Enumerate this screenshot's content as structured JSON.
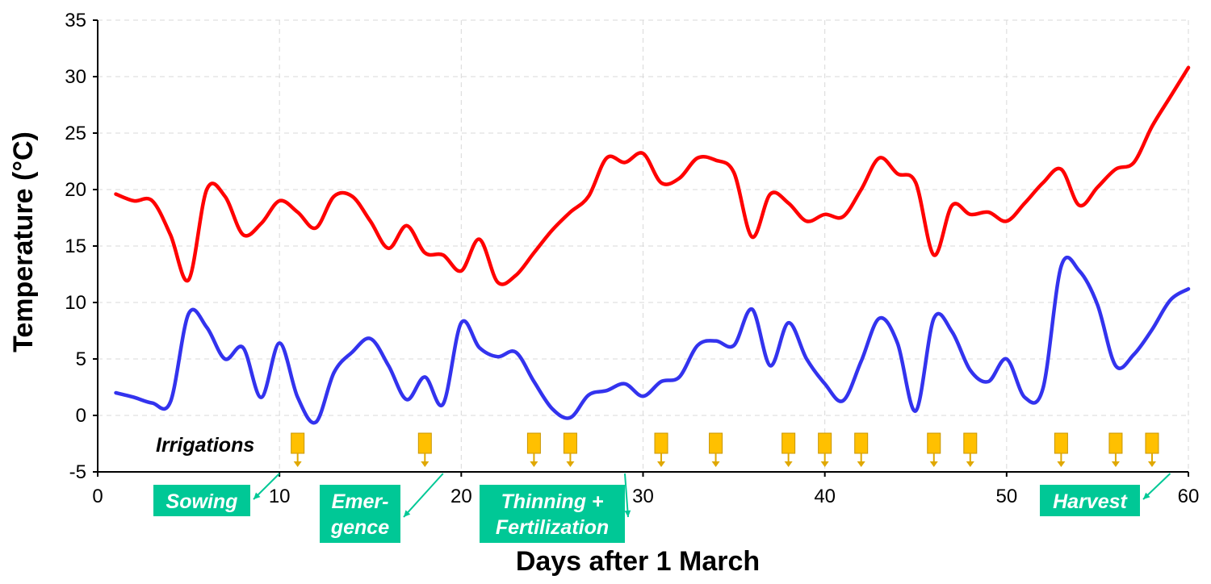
{
  "chart_data": {
    "type": "line",
    "title": "",
    "xlabel": "Days after 1 March",
    "ylabel": "Temperature (°C)",
    "xlim": [
      0,
      60
    ],
    "ylim": [
      -5,
      35
    ],
    "x_ticks": [
      0,
      10,
      20,
      30,
      40,
      50,
      60
    ],
    "y_ticks": [
      -5,
      0,
      5,
      10,
      15,
      20,
      25,
      30,
      35
    ],
    "grid": true,
    "series": [
      {
        "color": "#ff0000",
        "points": [
          [
            1,
            19.6
          ],
          [
            2,
            19.0
          ],
          [
            3,
            19.0
          ],
          [
            4,
            16.0
          ],
          [
            5,
            12.0
          ],
          [
            6,
            20.0
          ],
          [
            7,
            19.4
          ],
          [
            8,
            16.0
          ],
          [
            9,
            17.0
          ],
          [
            10,
            19.0
          ],
          [
            11,
            18.0
          ],
          [
            12,
            16.6
          ],
          [
            13,
            19.4
          ],
          [
            14,
            19.4
          ],
          [
            15,
            17.2
          ],
          [
            16,
            14.8
          ],
          [
            17,
            16.8
          ],
          [
            18,
            14.4
          ],
          [
            19,
            14.2
          ],
          [
            20,
            12.8
          ],
          [
            21,
            15.6
          ],
          [
            22,
            11.8
          ],
          [
            23,
            12.4
          ],
          [
            24,
            14.4
          ],
          [
            25,
            16.4
          ],
          [
            26,
            18.0
          ],
          [
            27,
            19.4
          ],
          [
            28,
            22.8
          ],
          [
            29,
            22.4
          ],
          [
            30,
            23.2
          ],
          [
            31,
            20.6
          ],
          [
            32,
            21.0
          ],
          [
            33,
            22.8
          ],
          [
            34,
            22.6
          ],
          [
            35,
            21.5
          ],
          [
            36,
            15.8
          ],
          [
            37,
            19.6
          ],
          [
            38,
            18.8
          ],
          [
            39,
            17.2
          ],
          [
            40,
            17.8
          ],
          [
            41,
            17.6
          ],
          [
            42,
            20.0
          ],
          [
            43,
            22.8
          ],
          [
            44,
            21.4
          ],
          [
            45,
            20.6
          ],
          [
            46,
            14.2
          ],
          [
            47,
            18.6
          ],
          [
            48,
            17.8
          ],
          [
            49,
            18.0
          ],
          [
            50,
            17.2
          ],
          [
            51,
            18.8
          ],
          [
            52,
            20.6
          ],
          [
            53,
            21.8
          ],
          [
            54,
            18.6
          ],
          [
            55,
            20.2
          ],
          [
            56,
            21.8
          ],
          [
            57,
            22.4
          ],
          [
            58,
            25.6
          ],
          [
            59,
            28.2
          ],
          [
            60,
            30.8
          ]
        ]
      },
      {
        "color": "#3333ee",
        "points": [
          [
            1,
            2.0
          ],
          [
            2,
            1.6
          ],
          [
            3,
            1.1
          ],
          [
            4,
            1.2
          ],
          [
            5,
            9.0
          ],
          [
            6,
            7.8
          ],
          [
            7,
            5.0
          ],
          [
            8,
            6.0
          ],
          [
            9,
            1.6
          ],
          [
            10,
            6.4
          ],
          [
            11,
            1.6
          ],
          [
            12,
            -0.6
          ],
          [
            13,
            3.8
          ],
          [
            14,
            5.6
          ],
          [
            15,
            6.8
          ],
          [
            16,
            4.4
          ],
          [
            17,
            1.4
          ],
          [
            18,
            3.4
          ],
          [
            19,
            1.0
          ],
          [
            20,
            8.2
          ],
          [
            21,
            6.0
          ],
          [
            22,
            5.2
          ],
          [
            23,
            5.6
          ],
          [
            24,
            3.0
          ],
          [
            25,
            0.6
          ],
          [
            26,
            -0.2
          ],
          [
            27,
            1.8
          ],
          [
            28,
            2.2
          ],
          [
            29,
            2.8
          ],
          [
            30,
            1.7
          ],
          [
            31,
            3.0
          ],
          [
            32,
            3.4
          ],
          [
            33,
            6.2
          ],
          [
            34,
            6.6
          ],
          [
            35,
            6.2
          ],
          [
            36,
            9.4
          ],
          [
            37,
            4.4
          ],
          [
            38,
            8.2
          ],
          [
            39,
            5.0
          ],
          [
            40,
            2.8
          ],
          [
            41,
            1.3
          ],
          [
            42,
            4.8
          ],
          [
            43,
            8.6
          ],
          [
            44,
            6.4
          ],
          [
            45,
            0.4
          ],
          [
            46,
            8.6
          ],
          [
            47,
            7.4
          ],
          [
            48,
            4.0
          ],
          [
            49,
            3.0
          ],
          [
            50,
            5.0
          ],
          [
            51,
            1.6
          ],
          [
            52,
            2.4
          ],
          [
            53,
            13.2
          ],
          [
            54,
            12.8
          ],
          [
            55,
            9.8
          ],
          [
            56,
            4.4
          ],
          [
            57,
            5.4
          ],
          [
            58,
            7.6
          ],
          [
            59,
            10.2
          ],
          [
            60,
            11.2
          ]
        ]
      }
    ],
    "irrigations": {
      "label": "Irrigations",
      "days": [
        11,
        18,
        24,
        26,
        31,
        34,
        38,
        40,
        42,
        46,
        48,
        53,
        56,
        58
      ],
      "color": "#ffc000"
    },
    "stages": [
      {
        "id": "sowing",
        "label": "Sowing",
        "lines": [
          "Sowing"
        ],
        "day": 10
      },
      {
        "id": "emergence",
        "label": "Emergence",
        "lines": [
          "Emer-",
          "gence"
        ],
        "day": 19
      },
      {
        "id": "thinning",
        "label": "Thinning + Fertilization",
        "lines": [
          "Thinning +",
          "Fertilization"
        ],
        "day": 29
      },
      {
        "id": "harvest",
        "label": "Harvest",
        "lines": [
          "Harvest"
        ],
        "day": 59
      }
    ],
    "stage_color": "#00c896"
  }
}
